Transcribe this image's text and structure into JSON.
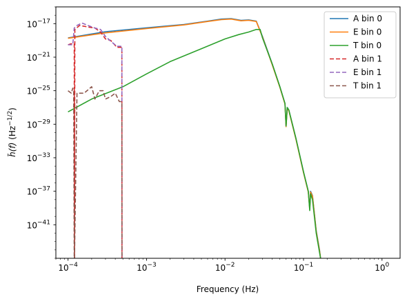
{
  "chart_data": {
    "type": "line",
    "title": "",
    "xlabel": "Frequency (Hz)",
    "ylabel": "h̃(f) (Hz^-1/2)",
    "x_scale": "log",
    "y_scale": "log",
    "xlim": [
      7e-05,
      1.7
    ],
    "ylim": [
      1e-45,
      1e-15
    ],
    "x_ticks": [
      {
        "value": 0.0001,
        "mant": "10",
        "exp": "−4"
      },
      {
        "value": 0.001,
        "mant": "10",
        "exp": "−3"
      },
      {
        "value": 0.01,
        "mant": "10",
        "exp": "−2"
      },
      {
        "value": 0.1,
        "mant": "10",
        "exp": "−1"
      },
      {
        "value": 1,
        "mant": "10",
        "exp": "0"
      }
    ],
    "y_ticks": [
      {
        "value": 1e-17,
        "mant": "10",
        "exp": "−17"
      },
      {
        "value": 1e-21,
        "mant": "10",
        "exp": "−21"
      },
      {
        "value": 1e-25,
        "mant": "10",
        "exp": "−25"
      },
      {
        "value": 1e-29,
        "mant": "10",
        "exp": "−29"
      },
      {
        "value": 1e-33,
        "mant": "10",
        "exp": "−33"
      },
      {
        "value": 1e-37,
        "mant": "10",
        "exp": "−37"
      },
      {
        "value": 1e-41,
        "mant": "10",
        "exp": "−41"
      }
    ],
    "grid": false,
    "legend_position": "top-right",
    "series": [
      {
        "name": "A bin 0",
        "color": "#1f77b4",
        "dash": "solid",
        "x": [
          0.0001,
          0.0003,
          0.001,
          0.003,
          0.006,
          0.009,
          0.012,
          0.016,
          0.02,
          0.025,
          0.03,
          0.04,
          0.05,
          0.058,
          0.06,
          0.062,
          0.065,
          0.08,
          0.1,
          0.115,
          0.12,
          0.123,
          0.13,
          0.145,
          0.16,
          0.165
        ],
        "y": [
          2e-19,
          1.1e-18,
          3.2e-18,
          8e-18,
          2e-17,
          3.5e-17,
          4e-17,
          2.5e-17,
          2.8e-17,
          2e-17,
          3e-19,
          1.5e-22,
          3e-25,
          3e-27,
          6e-30,
          1e-27,
          5e-28,
          2e-31,
          2e-35,
          1e-37,
          1e-39,
          1e-37,
          3e-38,
          2e-42,
          1e-44,
          1e-45
        ]
      },
      {
        "name": "E bin 0",
        "color": "#ff7f0e",
        "dash": "solid",
        "x": [
          0.0001,
          0.0003,
          0.001,
          0.003,
          0.006,
          0.009,
          0.012,
          0.016,
          0.02,
          0.025,
          0.03,
          0.04,
          0.05,
          0.058,
          0.06,
          0.062,
          0.065,
          0.08,
          0.1,
          0.115,
          0.12,
          0.123,
          0.13,
          0.145,
          0.16,
          0.165
        ],
        "y": [
          1.8e-19,
          8e-19,
          2.6e-18,
          7e-18,
          1.8e-17,
          3e-17,
          3.5e-17,
          2.2e-17,
          2.5e-17,
          1.8e-17,
          2.5e-19,
          1.2e-22,
          2.5e-25,
          2.5e-27,
          5e-30,
          8e-28,
          4e-28,
          1.6e-31,
          1.6e-35,
          8e-38,
          8e-40,
          8e-38,
          2.5e-38,
          1.6e-42,
          8e-45,
          1e-45
        ]
      },
      {
        "name": "T bin 0",
        "color": "#2ca02c",
        "dash": "solid",
        "x": [
          0.0001,
          0.0002,
          0.0005,
          0.001,
          0.002,
          0.005,
          0.01,
          0.015,
          0.02,
          0.025,
          0.028,
          0.03,
          0.04,
          0.05,
          0.058,
          0.06,
          0.062,
          0.065,
          0.08,
          0.1,
          0.115,
          0.12,
          0.123,
          0.13,
          0.145,
          0.16,
          0.165
        ],
        "y": [
          3e-28,
          1e-26,
          3e-25,
          1e-23,
          3e-22,
          1e-20,
          1.5e-19,
          5e-19,
          1e-18,
          2e-18,
          2e-18,
          2e-19,
          1.5e-22,
          3e-25,
          3e-27,
          6e-30,
          1e-27,
          5e-28,
          2e-31,
          2e-35,
          1e-37,
          5e-40,
          5e-38,
          1e-38,
          1e-42,
          5e-45,
          1e-45
        ]
      },
      {
        "name": "A bin 1",
        "color": "#d62728",
        "dash": "dashed",
        "x": [
          0.0001,
          0.00011,
          0.000115,
          0.00012,
          0.000121,
          0.000122,
          0.00014,
          0.00018,
          0.00022,
          0.00026,
          0.0003,
          0.00035,
          0.00042,
          0.000485,
          0.000486,
          0.00049
        ],
        "y": [
          3e-20,
          4e-20,
          4e-20,
          4e-20,
          1e-45,
          2e-18,
          6e-18,
          4e-18,
          3e-18,
          1e-18,
          1.5e-19,
          1e-19,
          1.5e-20,
          1.5e-20,
          1e-45,
          1e-45
        ]
      },
      {
        "name": "E bin 1",
        "color": "#9467bd",
        "dash": "dashed",
        "x": [
          0.0001,
          0.000115,
          0.00012,
          0.00013,
          0.00015,
          0.00018,
          0.00022,
          0.00026,
          0.0003,
          0.00035,
          0.00042,
          0.000485,
          0.000486
        ],
        "y": [
          3e-20,
          3e-20,
          3e-18,
          6e-18,
          1.2e-17,
          6e-18,
          3e-18,
          2e-18,
          3e-19,
          8e-20,
          2e-20,
          2e-20,
          1e-45
        ]
      },
      {
        "name": "T bin 1",
        "color": "#8c564b",
        "dash": "dashed",
        "x": [
          0.0001,
          0.00011,
          0.000115,
          0.000118,
          0.00012,
          0.000121,
          0.00013,
          0.00016,
          0.0002,
          0.00022,
          0.00025,
          0.00028,
          0.0003,
          0.00035,
          0.0004,
          0.00045,
          0.000485,
          0.000486
        ],
        "y": [
          1e-25,
          5e-26,
          2e-25,
          1e-25,
          1e-45,
          1e-45,
          5e-26,
          5e-26,
          3e-25,
          1e-26,
          1e-25,
          1e-25,
          1e-26,
          2e-26,
          5e-26,
          5e-27,
          5e-27,
          1e-45
        ]
      }
    ]
  }
}
